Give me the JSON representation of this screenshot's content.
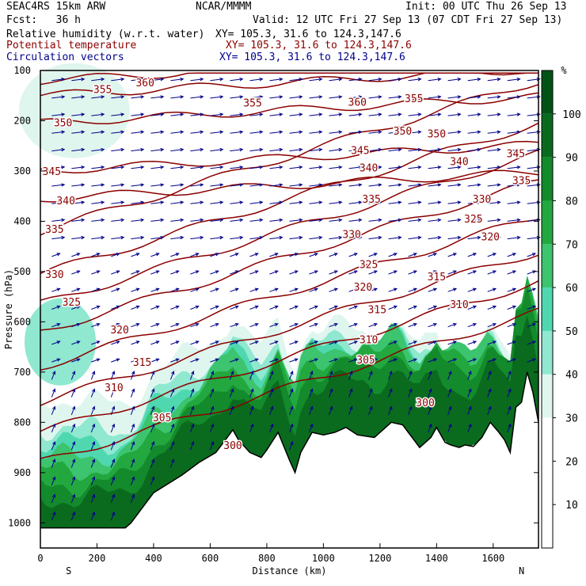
{
  "header": {
    "model": "SEAC4RS 15km ARW",
    "org": "NCAR/MMMM",
    "init": "Init: 00 UTC Thu 26 Sep 13",
    "fcst": "Fcst:   36 h",
    "valid": "Valid: 12 UTC Fri 27 Sep 13 (07 CDT Fri 27 Sep 13)"
  },
  "fields": [
    {
      "name": "Relative humidity (w.r.t. water)",
      "xy": "XY= 105.3, 31.6 to 124.3,147.6",
      "color": "#000000"
    },
    {
      "name": "Potential temperature",
      "xy": "XY= 105.3, 31.6 to 124.3,147.6",
      "color": "#8b0000"
    },
    {
      "name": "Circulation vectors",
      "xy": "XY= 105.3, 31.6 to 124.3,147.6",
      "color": "#00008b"
    }
  ],
  "chart_data": {
    "type": "heatmap",
    "xlabel": "Distance (km)",
    "ylabel": "Pressure (hPa)",
    "xlim": [
      0,
      1760
    ],
    "ylim": [
      1050,
      100
    ],
    "x_ticks": [
      0,
      200,
      400,
      600,
      800,
      1000,
      1200,
      1400,
      1600
    ],
    "y_ticks": [
      100,
      200,
      300,
      400,
      500,
      600,
      700,
      800,
      900,
      1000
    ],
    "start_label": "S",
    "end_label": "N",
    "colorbar": {
      "unit": "%",
      "ticks": [
        10,
        20,
        30,
        40,
        50,
        60,
        70,
        80,
        90,
        100
      ],
      "levels": [
        {
          "from": 0,
          "to": 30,
          "color": "#ffffff"
        },
        {
          "from": 30,
          "to": 40,
          "color": "#dff6ee"
        },
        {
          "from": 40,
          "to": 50,
          "color": "#8fe8cf"
        },
        {
          "from": 50,
          "to": 60,
          "color": "#4fd8b0"
        },
        {
          "from": 60,
          "to": 70,
          "color": "#3cc46e"
        },
        {
          "from": 70,
          "to": 80,
          "color": "#22a83f"
        },
        {
          "from": 80,
          "to": 90,
          "color": "#138a2b"
        },
        {
          "from": 90,
          "to": 100,
          "color": "#0a6b1e"
        },
        {
          "from": 100,
          "to": 110,
          "color": "#045316"
        }
      ]
    },
    "terrain": [
      [
        0,
        1010
      ],
      [
        100,
        1010
      ],
      [
        200,
        1010
      ],
      [
        300,
        1010
      ],
      [
        320,
        1000
      ],
      [
        400,
        940
      ],
      [
        500,
        905
      ],
      [
        560,
        880
      ],
      [
        620,
        860
      ],
      [
        660,
        830
      ],
      [
        680,
        815
      ],
      [
        700,
        835
      ],
      [
        740,
        860
      ],
      [
        780,
        870
      ],
      [
        800,
        855
      ],
      [
        840,
        820
      ],
      [
        880,
        875
      ],
      [
        900,
        900
      ],
      [
        920,
        860
      ],
      [
        960,
        820
      ],
      [
        1000,
        825
      ],
      [
        1040,
        820
      ],
      [
        1080,
        810
      ],
      [
        1120,
        825
      ],
      [
        1180,
        830
      ],
      [
        1220,
        810
      ],
      [
        1240,
        800
      ],
      [
        1280,
        805
      ],
      [
        1300,
        820
      ],
      [
        1320,
        835
      ],
      [
        1340,
        850
      ],
      [
        1380,
        830
      ],
      [
        1400,
        810
      ],
      [
        1430,
        840
      ],
      [
        1450,
        845
      ],
      [
        1480,
        850
      ],
      [
        1500,
        845
      ],
      [
        1530,
        848
      ],
      [
        1560,
        830
      ],
      [
        1590,
        800
      ],
      [
        1620,
        820
      ],
      [
        1640,
        835
      ],
      [
        1660,
        860
      ],
      [
        1680,
        770
      ],
      [
        1700,
        760
      ],
      [
        1720,
        700
      ],
      [
        1740,
        740
      ],
      [
        1760,
        800
      ]
    ],
    "theta_contour_labels": [
      {
        "value": 300,
        "x": 680,
        "p": 845
      },
      {
        "value": 300,
        "x": 1360,
        "p": 760
      },
      {
        "value": 305,
        "x": 430,
        "p": 790
      },
      {
        "value": 305,
        "x": 1150,
        "p": 675
      },
      {
        "value": 310,
        "x": 260,
        "p": 730
      },
      {
        "value": 310,
        "x": 1160,
        "p": 635
      },
      {
        "value": 310,
        "x": 1480,
        "p": 565
      },
      {
        "value": 315,
        "x": 360,
        "p": 680
      },
      {
        "value": 315,
        "x": 1190,
        "p": 575
      },
      {
        "value": 315,
        "x": 1400,
        "p": 510
      },
      {
        "value": 320,
        "x": 280,
        "p": 615
      },
      {
        "value": 320,
        "x": 1140,
        "p": 530
      },
      {
        "value": 320,
        "x": 1590,
        "p": 430
      },
      {
        "value": 325,
        "x": 110,
        "p": 560
      },
      {
        "value": 325,
        "x": 1160,
        "p": 485
      },
      {
        "value": 325,
        "x": 1530,
        "p": 395
      },
      {
        "value": 330,
        "x": 50,
        "p": 505
      },
      {
        "value": 330,
        "x": 1100,
        "p": 425
      },
      {
        "value": 330,
        "x": 1560,
        "p": 355
      },
      {
        "value": 335,
        "x": 50,
        "p": 415
      },
      {
        "value": 335,
        "x": 1170,
        "p": 355
      },
      {
        "value": 335,
        "x": 1700,
        "p": 318
      },
      {
        "value": 340,
        "x": 90,
        "p": 358
      },
      {
        "value": 340,
        "x": 1160,
        "p": 293
      },
      {
        "value": 340,
        "x": 1480,
        "p": 280
      },
      {
        "value": 345,
        "x": 40,
        "p": 300
      },
      {
        "value": 345,
        "x": 1130,
        "p": 258
      },
      {
        "value": 345,
        "x": 1680,
        "p": 265
      },
      {
        "value": 350,
        "x": 80,
        "p": 203
      },
      {
        "value": 350,
        "x": 1280,
        "p": 220
      },
      {
        "value": 350,
        "x": 1400,
        "p": 225
      },
      {
        "value": 355,
        "x": 220,
        "p": 137
      },
      {
        "value": 355,
        "x": 750,
        "p": 164
      },
      {
        "value": 355,
        "x": 1320,
        "p": 155
      },
      {
        "value": 360,
        "x": 370,
        "p": 124
      },
      {
        "value": 360,
        "x": 1120,
        "p": 162
      }
    ]
  }
}
